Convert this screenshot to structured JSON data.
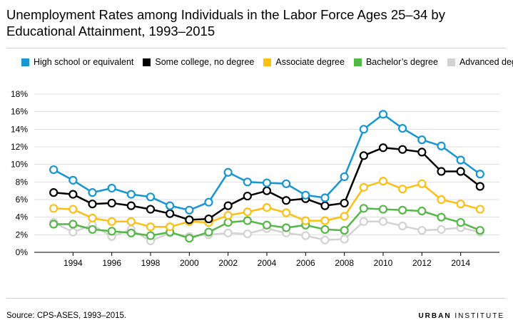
{
  "title": "Unemployment Rates among Individuals in the Labor Force Ages 25–34 by Educational Attainment, 1993–2015",
  "source": "Source: CPS-ASES, 1993–2015.",
  "brand": {
    "bold": "URBAN",
    "rest": " INSTITUTE"
  },
  "chart_data": {
    "type": "line",
    "title": "Unemployment Rates among Individuals in the Labor Force Ages 25–34 by Educational Attainment, 1993–2015",
    "xlabel": "",
    "ylabel": "",
    "ylim": [
      0,
      18
    ],
    "yticks": [
      0,
      2,
      4,
      6,
      8,
      10,
      12,
      14,
      16,
      18
    ],
    "ytick_labels": [
      "0%",
      "2%",
      "4%",
      "6%",
      "8%",
      "10%",
      "12%",
      "14%",
      "16%",
      "18%"
    ],
    "xlim": [
      1992,
      2016
    ],
    "xticks": [
      1994,
      1996,
      1998,
      2000,
      2002,
      2004,
      2006,
      2008,
      2010,
      2012,
      2014
    ],
    "xtick_labels": [
      "1994",
      "1996",
      "1998",
      "2000",
      "2002",
      "2004",
      "2006",
      "2008",
      "2010",
      "2012",
      "2014"
    ],
    "x": [
      1993,
      1994,
      1995,
      1996,
      1997,
      1998,
      1999,
      2000,
      2001,
      2002,
      2003,
      2004,
      2005,
      2006,
      2007,
      2008,
      2009,
      2010,
      2011,
      2012,
      2013,
      2014,
      2015
    ],
    "grid": true,
    "legend_position": "top",
    "series": [
      {
        "name": "High school or equivalent",
        "color": "#1696d2",
        "values": [
          9.4,
          8.2,
          6.8,
          7.3,
          6.6,
          6.3,
          5.3,
          4.8,
          5.7,
          9.1,
          8.0,
          7.9,
          7.8,
          6.5,
          6.2,
          8.6,
          14.0,
          15.7,
          14.1,
          12.8,
          12.1,
          10.5,
          8.9
        ]
      },
      {
        "name": "Some college, no degree",
        "color": "#000000",
        "values": [
          6.8,
          6.6,
          5.5,
          5.6,
          5.3,
          4.9,
          4.4,
          3.7,
          3.8,
          5.3,
          6.4,
          7.0,
          5.9,
          6.1,
          5.3,
          5.6,
          11.0,
          11.9,
          11.7,
          11.4,
          9.2,
          9.2,
          7.5
        ]
      },
      {
        "name": "Associate degree",
        "color": "#fdbf11",
        "values": [
          5.0,
          4.9,
          3.9,
          3.5,
          3.5,
          2.9,
          2.9,
          3.5,
          3.4,
          4.2,
          4.6,
          5.1,
          4.5,
          3.6,
          3.6,
          4.1,
          7.4,
          8.1,
          7.2,
          7.8,
          6.0,
          5.5,
          4.9
        ]
      },
      {
        "name": "Bachelor’s degree",
        "color": "#55b748",
        "values": [
          3.2,
          3.2,
          2.6,
          2.4,
          2.2,
          1.9,
          2.3,
          1.6,
          2.3,
          3.4,
          3.6,
          3.1,
          2.8,
          3.1,
          2.6,
          2.5,
          5.0,
          4.9,
          4.8,
          4.7,
          4.0,
          3.4,
          2.5
        ]
      },
      {
        "name": "Advanced degree",
        "color": "#d2d2d2",
        "values": [
          3.4,
          2.3,
          3.1,
          1.8,
          2.6,
          1.3,
          2.2,
          1.8,
          2.0,
          2.2,
          2.1,
          2.7,
          2.2,
          1.9,
          1.4,
          1.5,
          3.5,
          3.5,
          3.0,
          2.5,
          2.6,
          2.8,
          2.3
        ]
      }
    ]
  }
}
